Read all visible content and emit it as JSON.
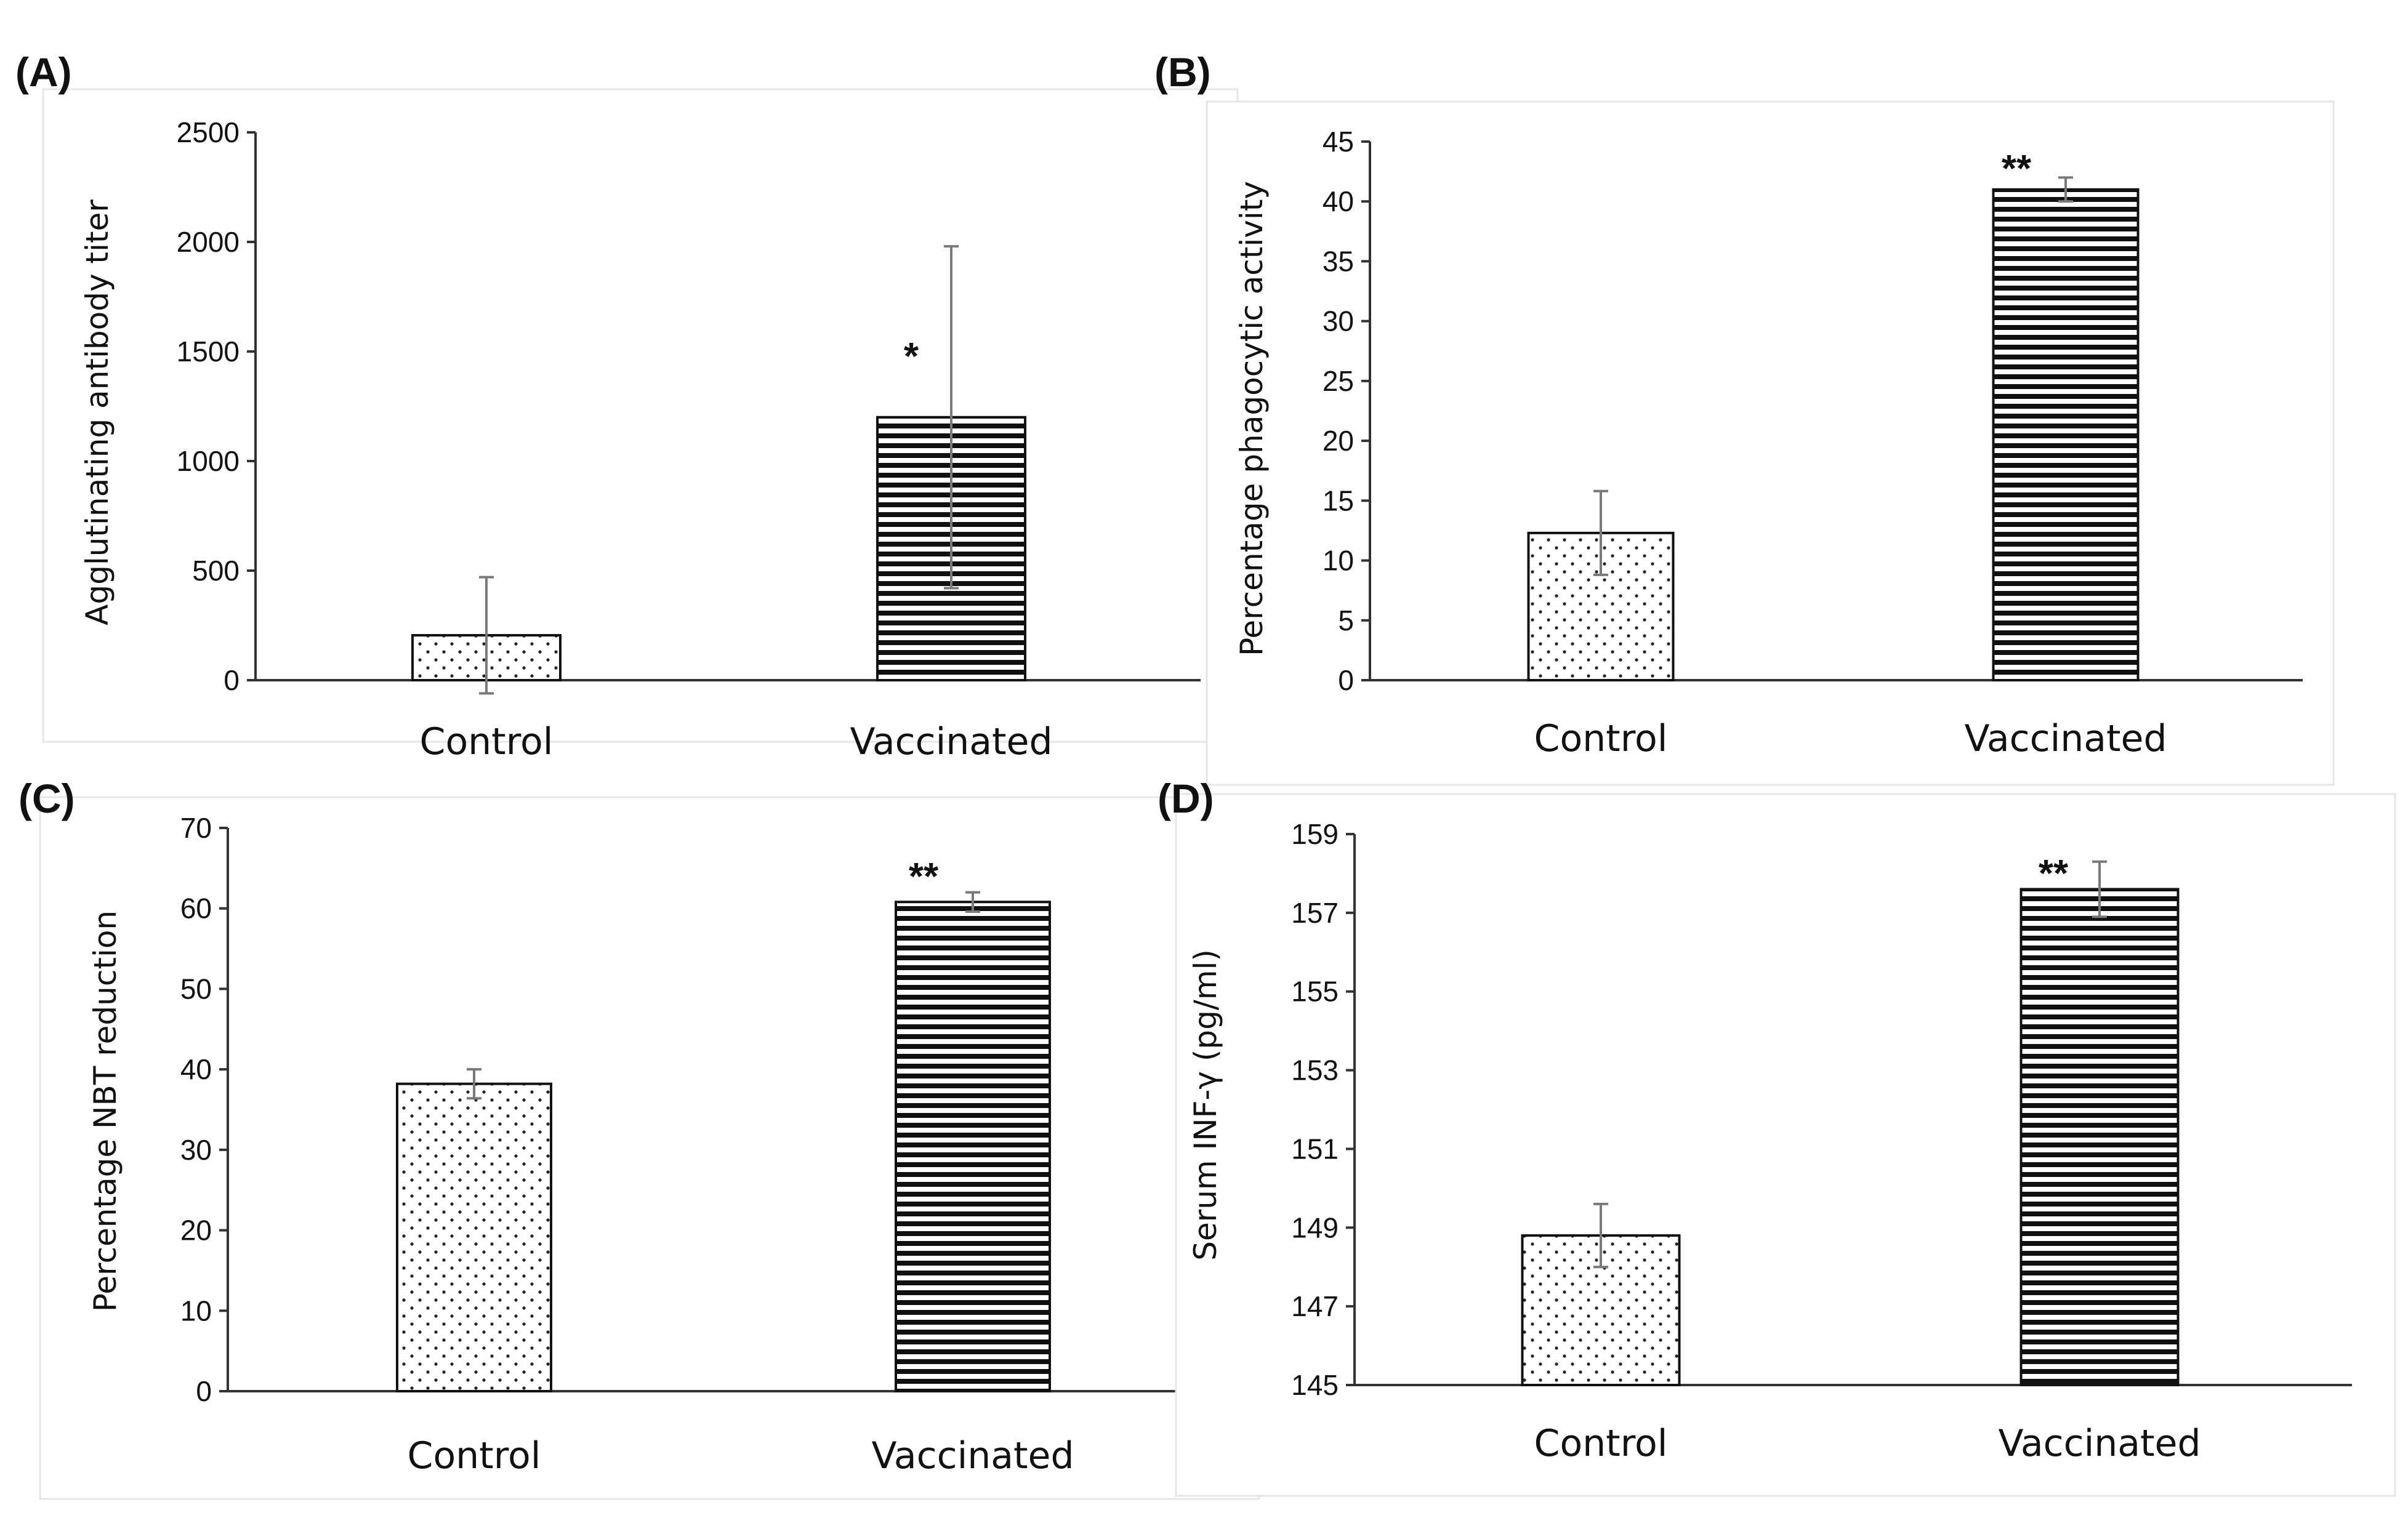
{
  "figure": {
    "bar_styles": {
      "Control": {
        "pattern": "dotted",
        "fill": "#ffffff",
        "mark": "#222222"
      },
      "Vaccinated": {
        "pattern": "horizontal-stripes",
        "fill": "#ffffff",
        "mark": "#111111"
      }
    },
    "error_color": "#7a7a7a"
  },
  "chart_data": [
    {
      "panel": "(A)",
      "type": "bar",
      "title": "",
      "xlabel": "",
      "ylabel": "Agglutinating antibody titer",
      "categories": [
        "Control",
        "Vaccinated"
      ],
      "values": [
        205,
        1200
      ],
      "errors": [
        265,
        780
      ],
      "significance": [
        "",
        "*"
      ],
      "ylim": [
        0,
        2500
      ],
      "yticks": [
        0,
        500,
        1000,
        1500,
        2000,
        2500
      ],
      "grid": false
    },
    {
      "panel": "(B)",
      "type": "bar",
      "title": "",
      "xlabel": "",
      "ylabel": "Percentage phagocytic activity",
      "categories": [
        "Control",
        "Vaccinated"
      ],
      "values": [
        12.3,
        41
      ],
      "errors": [
        3.5,
        1
      ],
      "significance": [
        "",
        "**"
      ],
      "ylim": [
        0,
        45
      ],
      "yticks": [
        0,
        5,
        10,
        15,
        20,
        25,
        30,
        35,
        40,
        45
      ],
      "grid": false
    },
    {
      "panel": "(C)",
      "type": "bar",
      "title": "",
      "xlabel": "",
      "ylabel": "Percentage NBT reduction",
      "categories": [
        "Control",
        "Vaccinated"
      ],
      "values": [
        38.2,
        60.8
      ],
      "errors": [
        1.8,
        1.2
      ],
      "significance": [
        "",
        "**"
      ],
      "ylim": [
        0,
        70
      ],
      "yticks": [
        0,
        10,
        20,
        30,
        40,
        50,
        60,
        70
      ],
      "grid": false
    },
    {
      "panel": "(D)",
      "type": "bar",
      "title": "",
      "xlabel": "",
      "ylabel": "Serum INF-γ (pg/ml)",
      "categories": [
        "Control",
        "Vaccinated"
      ],
      "values": [
        148.8,
        157.6
      ],
      "errors": [
        0.8,
        0.7
      ],
      "significance": [
        "",
        "**"
      ],
      "ylim": [
        145,
        159
      ],
      "yticks": [
        145,
        147,
        149,
        151,
        153,
        155,
        157,
        159
      ],
      "grid": false
    }
  ]
}
